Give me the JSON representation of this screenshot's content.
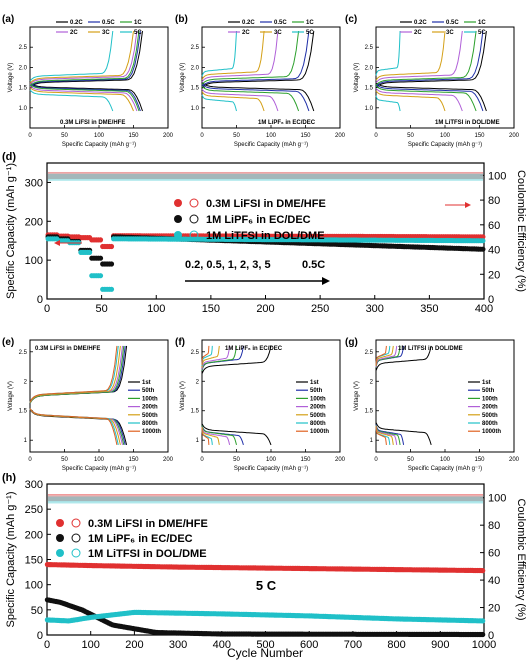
{
  "figure": {
    "x_axis_label": "Cycle Number"
  },
  "colors": {
    "c02": "#000000",
    "c05": "#1f2fa8",
    "c1": "#2ca02c",
    "c2": "#b060d8",
    "c3": "#d4a017",
    "c5": "#20c0c8",
    "c1st": "#000000",
    "c50": "#1f2fa8",
    "c100": "#2ca02c",
    "c200": "#b060d8",
    "c500": "#d4a017",
    "c800": "#20c0c8",
    "c1000": "#e06020",
    "red": "#e03030",
    "black": "#101010",
    "cyan": "#20c0c8",
    "pink": "#f08a8a"
  },
  "chart_data": [
    {
      "type": "line",
      "panel": "(a)",
      "annotation": "0.3M LiFSI in DME/HFE",
      "xlabel": "Specific Capacity (mAh g⁻¹)",
      "ylabel": "Voltage (V)",
      "xlim": [
        0,
        200
      ],
      "ylim": [
        0.5,
        3.0
      ],
      "xticks": [
        "0",
        "50",
        "100",
        "150",
        "200"
      ],
      "yticks": [
        "1.0",
        "1.5",
        "2.0",
        "2.5"
      ],
      "legend": [
        "0.2C",
        "0.5C",
        "1C",
        "2C",
        "3C",
        "5C"
      ],
      "series": [
        {
          "name": "0.2C",
          "capacity": 163,
          "charge_v": 1.62,
          "discharge_v": 1.52
        },
        {
          "name": "0.5C",
          "capacity": 160,
          "charge_v": 1.64,
          "discharge_v": 1.5
        },
        {
          "name": "1C",
          "capacity": 158,
          "charge_v": 1.66,
          "discharge_v": 1.48
        },
        {
          "name": "2C",
          "capacity": 155,
          "charge_v": 1.7,
          "discharge_v": 1.44
        },
        {
          "name": "3C",
          "capacity": 150,
          "charge_v": 1.73,
          "discharge_v": 1.4
        },
        {
          "name": "5C",
          "capacity": 120,
          "charge_v": 1.78,
          "discharge_v": 1.34
        }
      ]
    },
    {
      "type": "line",
      "panel": "(b)",
      "annotation": "1M LiPF₆ in EC/DEC",
      "xlabel": "Specific Capacity (mAh g⁻¹)",
      "ylabel": "Voltage (V)",
      "xlim": [
        0,
        200
      ],
      "ylim": [
        0.5,
        3.0
      ],
      "xticks": [
        "0",
        "50",
        "100",
        "150",
        "200"
      ],
      "yticks": [
        "1.0",
        "1.5",
        "2.0",
        "2.5"
      ],
      "legend": [
        "0.2C",
        "0.5C",
        "1C",
        "2C",
        "3C",
        "5C"
      ],
      "series": [
        {
          "name": "0.2C",
          "capacity": 162,
          "charge_v": 1.62,
          "discharge_v": 1.52
        },
        {
          "name": "0.5C",
          "capacity": 155,
          "charge_v": 1.65,
          "discharge_v": 1.48
        },
        {
          "name": "1C",
          "capacity": 140,
          "charge_v": 1.7,
          "discharge_v": 1.43
        },
        {
          "name": "2C",
          "capacity": 110,
          "charge_v": 1.76,
          "discharge_v": 1.36
        },
        {
          "name": "3C",
          "capacity": 90,
          "charge_v": 1.82,
          "discharge_v": 1.3
        },
        {
          "name": "5C",
          "capacity": 50,
          "charge_v": 1.9,
          "discharge_v": 1.22
        }
      ]
    },
    {
      "type": "line",
      "panel": "(c)",
      "annotation": "1M LiTFSI in DOL/DME",
      "xlabel": "Specific Capacity (mAh g⁻¹)",
      "ylabel": "Voltage (V)",
      "xlim": [
        0,
        200
      ],
      "ylim": [
        0.5,
        3.0
      ],
      "xticks": [
        "0",
        "50",
        "100",
        "150",
        "200"
      ],
      "yticks": [
        "1.0",
        "1.5",
        "2.0",
        "2.5"
      ],
      "legend": [
        "0.2C",
        "0.5C",
        "1C",
        "2C",
        "3C",
        "5C"
      ],
      "series": [
        {
          "name": "0.2C",
          "capacity": 160,
          "charge_v": 1.62,
          "discharge_v": 1.52
        },
        {
          "name": "0.5C",
          "capacity": 155,
          "charge_v": 1.65,
          "discharge_v": 1.48
        },
        {
          "name": "1C",
          "capacity": 145,
          "charge_v": 1.68,
          "discharge_v": 1.44
        },
        {
          "name": "2C",
          "capacity": 125,
          "charge_v": 1.74,
          "discharge_v": 1.38
        },
        {
          "name": "3C",
          "capacity": 100,
          "charge_v": 1.8,
          "discharge_v": 1.32
        },
        {
          "name": "5C",
          "capacity": 35,
          "charge_v": 1.92,
          "discharge_v": 1.2
        }
      ]
    },
    {
      "type": "scatter",
      "panel": "(d)",
      "ylabel": "Specific Capacity (mAh g⁻¹)",
      "y2label": "Coulombic Efficiency (%)",
      "xlim": [
        0,
        400
      ],
      "ylim": [
        0,
        350
      ],
      "y2lim": [
        0,
        110
      ],
      "xticks": [
        "0",
        "50",
        "100",
        "150",
        "200",
        "250",
        "300",
        "350",
        "400"
      ],
      "yticks": [
        "0",
        "100",
        "200",
        "300"
      ],
      "y2ticks": [
        "0",
        "20",
        "40",
        "60",
        "80",
        "100"
      ],
      "legend": [
        "0.3M LiFSI in DME/HFE",
        "1M LiPF₆ in EC/DEC",
        "1M LiTFSI in DOL/DME"
      ],
      "rate_label": "0.2, 0.5, 1, 2, 3, 5",
      "rate_label_2": "0.5C",
      "series": [
        {
          "name": "0.3M LiFSI in DME/HFE",
          "rate_steps": [
            [
              1,
              10,
              165
            ],
            [
              11,
              20,
              162
            ],
            [
              21,
              30,
              160
            ],
            [
              31,
              40,
              158
            ],
            [
              41,
              50,
              152
            ],
            [
              51,
              60,
              135
            ]
          ],
          "after": [
            [
              61,
              400,
              163,
              160
            ]
          ],
          "ce": 99.5
        },
        {
          "name": "1M LiPF₆ in EC/DEC",
          "rate_steps": [
            [
              1,
              10,
              160
            ],
            [
              11,
              20,
              155
            ],
            [
              21,
              30,
              148
            ],
            [
              31,
              40,
              125
            ],
            [
              41,
              50,
              105
            ],
            [
              51,
              60,
              90
            ]
          ],
          "after": [
            [
              61,
              400,
              160,
              128
            ]
          ],
          "ce": 99
        },
        {
          "name": "1M LiTFSI in DOL/DME",
          "rate_steps": [
            [
              1,
              10,
              155
            ],
            [
              11,
              20,
              150
            ],
            [
              21,
              30,
              145
            ],
            [
              31,
              40,
              120
            ],
            [
              41,
              50,
              60
            ],
            [
              51,
              60,
              25
            ]
          ],
          "after": [
            [
              61,
              400,
              155,
              150
            ]
          ],
          "ce": 98
        }
      ]
    },
    {
      "type": "line",
      "panel": "(e)",
      "annotation": "0.3M LiFSI in DME/HFE",
      "xlabel": "Specific Capacity (mAh g⁻¹)",
      "ylabel": "Voltage (V)",
      "xlim": [
        0,
        200
      ],
      "ylim": [
        0.8,
        2.7
      ],
      "xticks": [
        "0",
        "50",
        "100",
        "150",
        "200"
      ],
      "yticks": [
        "1",
        "1.5",
        "2",
        "2.5"
      ],
      "legend": [
        "1st",
        "50th",
        "100th",
        "200th",
        "500th",
        "800th",
        "1000th"
      ],
      "series": [
        {
          "name": "1st",
          "capacity": 140,
          "charge_v": 1.75,
          "discharge_v": 1.42
        },
        {
          "name": "50th",
          "capacity": 138,
          "charge_v": 1.75,
          "discharge_v": 1.43
        },
        {
          "name": "100th",
          "capacity": 136,
          "charge_v": 1.75,
          "discharge_v": 1.43
        },
        {
          "name": "200th",
          "capacity": 134,
          "charge_v": 1.76,
          "discharge_v": 1.43
        },
        {
          "name": "500th",
          "capacity": 131,
          "charge_v": 1.76,
          "discharge_v": 1.43
        },
        {
          "name": "800th",
          "capacity": 128,
          "charge_v": 1.77,
          "discharge_v": 1.44
        },
        {
          "name": "1000th",
          "capacity": 126,
          "charge_v": 1.77,
          "discharge_v": 1.44
        }
      ]
    },
    {
      "type": "line",
      "panel": "(f)",
      "annotation": "1M LiPF₆ in EC/DEC",
      "xlabel": "Specific Capacity (mAh g⁻¹)",
      "ylabel": "Voltage (V)",
      "xlim": [
        0,
        200
      ],
      "ylim": [
        0.8,
        2.7
      ],
      "xticks": [
        "0",
        "50",
        "100",
        "150",
        "200"
      ],
      "yticks": [
        "1",
        "1.5",
        "2",
        "2.5"
      ],
      "legend": [
        "1st",
        "50th",
        "100th",
        "200th",
        "500th",
        "800th",
        "1000th"
      ],
      "series": [
        {
          "name": "1st",
          "capacity": 100,
          "charge_v": 2.25,
          "discharge_v": 1.18
        },
        {
          "name": "50th",
          "capacity": 60,
          "charge_v": 2.3,
          "discharge_v": 1.15
        },
        {
          "name": "100th",
          "capacity": 50,
          "charge_v": 2.3,
          "discharge_v": 1.15
        },
        {
          "name": "200th",
          "capacity": 40,
          "charge_v": 2.32,
          "discharge_v": 1.13
        },
        {
          "name": "500th",
          "capacity": 25,
          "charge_v": 2.35,
          "discharge_v": 1.12
        },
        {
          "name": "800th",
          "capacity": 15,
          "charge_v": 2.38,
          "discharge_v": 1.1
        },
        {
          "name": "1000th",
          "capacity": 10,
          "charge_v": 2.4,
          "discharge_v": 1.1
        }
      ]
    },
    {
      "type": "line",
      "panel": "(g)",
      "annotation": "1M LiTFSI in DOL/DME",
      "xlabel": "Specific Capacity (mAh g⁻¹)",
      "ylabel": "Voltage (V)",
      "xlim": [
        0,
        200
      ],
      "ylim": [
        0.8,
        2.7
      ],
      "xticks": [
        "0",
        "50",
        "100",
        "150",
        "200"
      ],
      "yticks": [
        "1",
        "1.5",
        "2",
        "2.5"
      ],
      "legend": [
        "1st",
        "50th",
        "100th",
        "200th",
        "500th",
        "800th",
        "1000th"
      ],
      "series": [
        {
          "name": "1st",
          "capacity": 80,
          "charge_v": 2.3,
          "discharge_v": 1.2
        },
        {
          "name": "50th",
          "capacity": 40,
          "charge_v": 2.35,
          "discharge_v": 1.17
        },
        {
          "name": "100th",
          "capacity": 35,
          "charge_v": 2.35,
          "discharge_v": 1.16
        },
        {
          "name": "200th",
          "capacity": 30,
          "charge_v": 2.36,
          "discharge_v": 1.15
        },
        {
          "name": "500th",
          "capacity": 25,
          "charge_v": 2.38,
          "discharge_v": 1.14
        },
        {
          "name": "800th",
          "capacity": 20,
          "charge_v": 2.4,
          "discharge_v": 1.12
        },
        {
          "name": "1000th",
          "capacity": 15,
          "charge_v": 2.4,
          "discharge_v": 1.12
        }
      ]
    },
    {
      "type": "scatter",
      "panel": "(h)",
      "ylabel": "Specific Capacity (mAh g⁻¹)",
      "y2label": "Coulombic Efficiency (%)",
      "xlabel": "Cycle Number",
      "xlim": [
        0,
        1000
      ],
      "ylim": [
        0,
        300
      ],
      "y2lim": [
        0,
        110
      ],
      "xticks": [
        "0",
        "100",
        "200",
        "300",
        "400",
        "500",
        "600",
        "700",
        "800",
        "900",
        "1000"
      ],
      "yticks": [
        "0",
        "50",
        "100",
        "150",
        "200",
        "250",
        "300"
      ],
      "y2ticks": [
        "0",
        "20",
        "40",
        "60",
        "80",
        "100"
      ],
      "legend": [
        "0.3M LiFSI in DME/HFE",
        "1M LiPF₆ in EC/DEC",
        "1M LiTFSI in DOL/DME"
      ],
      "rate_label": "5 C",
      "series": [
        {
          "name": "0.3M LiFSI in DME/HFE",
          "capacity_points": [
            [
              1,
              140
            ],
            [
              100,
              138
            ],
            [
              300,
              135
            ],
            [
              600,
              132
            ],
            [
              1000,
              128
            ]
          ],
          "ce": 99.8
        },
        {
          "name": "1M LiPF₆ in EC/DEC",
          "capacity_points": [
            [
              1,
              70
            ],
            [
              30,
              65
            ],
            [
              80,
              50
            ],
            [
              150,
              20
            ],
            [
              250,
              5
            ],
            [
              400,
              2
            ],
            [
              1000,
              1
            ]
          ],
          "ce": 99
        },
        {
          "name": "1M LiTFSI in DOL/DME",
          "capacity_points": [
            [
              1,
              30
            ],
            [
              50,
              28
            ],
            [
              100,
              35
            ],
            [
              200,
              45
            ],
            [
              400,
              42
            ],
            [
              600,
              38
            ],
            [
              800,
              32
            ],
            [
              1000,
              28
            ]
          ],
          "ce": 98
        }
      ]
    }
  ]
}
